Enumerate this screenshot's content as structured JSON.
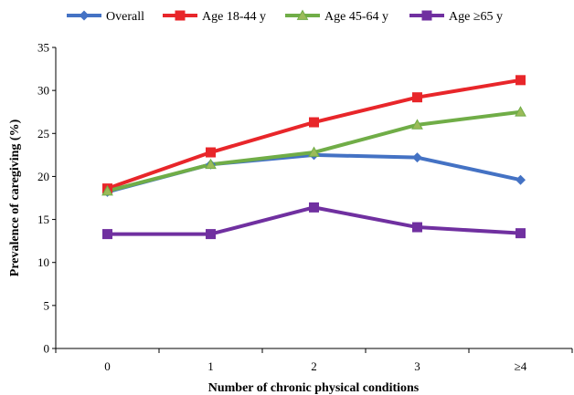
{
  "chart_data": {
    "type": "line",
    "categories": [
      "0",
      "1",
      "2",
      "3",
      "≥4"
    ],
    "series": [
      {
        "name": "Overall",
        "color": "#4472C4",
        "marker": "diamond",
        "values": [
          18.2,
          21.4,
          22.5,
          22.2,
          19.6
        ]
      },
      {
        "name": "Age 18-44 y",
        "color": "#E8262A",
        "marker": "square",
        "values": [
          18.6,
          22.8,
          26.3,
          29.2,
          31.2
        ]
      },
      {
        "name": "Age 45-64 y",
        "color": "#70AD47",
        "marker": "triangle",
        "values": [
          18.3,
          21.4,
          22.8,
          26.0,
          27.5
        ]
      },
      {
        "name": "Age ≥65 y",
        "color": "#7030A0",
        "marker": "square",
        "values": [
          13.3,
          13.3,
          16.4,
          14.1,
          13.4
        ]
      }
    ],
    "xlabel": "Number of chronic physical conditions",
    "ylabel": "Prevalence of caregiving (%)",
    "ylim": [
      0,
      35
    ],
    "yticks": [
      0,
      5,
      10,
      15,
      20,
      25,
      30,
      35
    ],
    "grid": false,
    "legend_position": "top"
  }
}
